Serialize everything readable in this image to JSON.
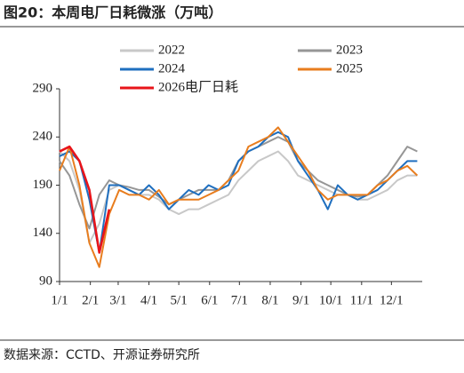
{
  "chart_data": {
    "type": "line",
    "title": "图20：本周电厂日耗微涨（万吨）",
    "source": "数据来源：CCTD、开源证券研究所",
    "x": [
      1,
      11,
      21,
      31,
      41,
      51,
      61,
      71,
      81,
      91,
      101,
      111,
      121,
      131,
      141,
      151,
      161,
      171,
      181,
      191,
      201,
      211,
      221,
      231,
      241,
      251,
      261,
      271,
      281,
      291,
      301,
      311,
      321,
      331,
      341,
      351,
      361
    ],
    "xlim": [
      1,
      366
    ],
    "xticks": [
      {
        "value": 1,
        "label": "1/1"
      },
      {
        "value": 32,
        "label": "2/1"
      },
      {
        "value": 60,
        "label": "3/1"
      },
      {
        "value": 91,
        "label": "4/1"
      },
      {
        "value": 121,
        "label": "5/1"
      },
      {
        "value": 152,
        "label": "6/1"
      },
      {
        "value": 182,
        "label": "7/1"
      },
      {
        "value": 213,
        "label": "8/1"
      },
      {
        "value": 244,
        "label": "9/1"
      },
      {
        "value": 274,
        "label": "10/1"
      },
      {
        "value": 305,
        "label": "11/1"
      },
      {
        "value": 335,
        "label": "12/1"
      }
    ],
    "ylim": [
      90,
      290
    ],
    "yticks": [
      90,
      140,
      190,
      240,
      290
    ],
    "series": [
      {
        "name": "2022",
        "color": "#c8c8c8",
        "values": [
          225,
          215,
          185,
          130,
          150,
          185,
          190,
          185,
          180,
          180,
          175,
          165,
          160,
          165,
          165,
          170,
          175,
          180,
          195,
          205,
          215,
          220,
          225,
          215,
          200,
          195,
          190,
          185,
          180,
          180,
          175,
          175,
          180,
          185,
          195,
          200,
          200
        ]
      },
      {
        "name": "2023",
        "color": "#969696",
        "values": [
          215,
          200,
          170,
          145,
          180,
          195,
          190,
          188,
          185,
          185,
          178,
          170,
          175,
          180,
          185,
          185,
          185,
          195,
          215,
          225,
          230,
          235,
          240,
          235,
          215,
          205,
          195,
          190,
          185,
          180,
          178,
          180,
          190,
          200,
          215,
          230,
          225
        ]
      },
      {
        "name": "2024",
        "color": "#1f6fbf",
        "values": [
          220,
          225,
          215,
          175,
          120,
          190,
          190,
          185,
          180,
          190,
          180,
          165,
          175,
          185,
          180,
          190,
          185,
          190,
          215,
          225,
          230,
          240,
          245,
          240,
          215,
          200,
          185,
          165,
          190,
          180,
          175,
          180,
          185,
          195,
          205,
          215,
          215
        ]
      },
      {
        "name": "2025",
        "color": "#e87d1e",
        "values": [
          205,
          230,
          190,
          130,
          105,
          160,
          185,
          180,
          180,
          175,
          185,
          170,
          175,
          175,
          175,
          180,
          185,
          195,
          205,
          230,
          235,
          240,
          250,
          235,
          220,
          205,
          185,
          175,
          180,
          180,
          180,
          180,
          190,
          195,
          205,
          210,
          200
        ]
      },
      {
        "name": "2026电厂日耗",
        "color": "#e8141a",
        "values": [
          225,
          230,
          215,
          185,
          120,
          165,
          null,
          null,
          null,
          null,
          null,
          null,
          null,
          null,
          null,
          null,
          null,
          null,
          null,
          null,
          null,
          null,
          null,
          null,
          null,
          null,
          null,
          null,
          null,
          null,
          null,
          null,
          null,
          null,
          null,
          null,
          null
        ]
      }
    ]
  }
}
